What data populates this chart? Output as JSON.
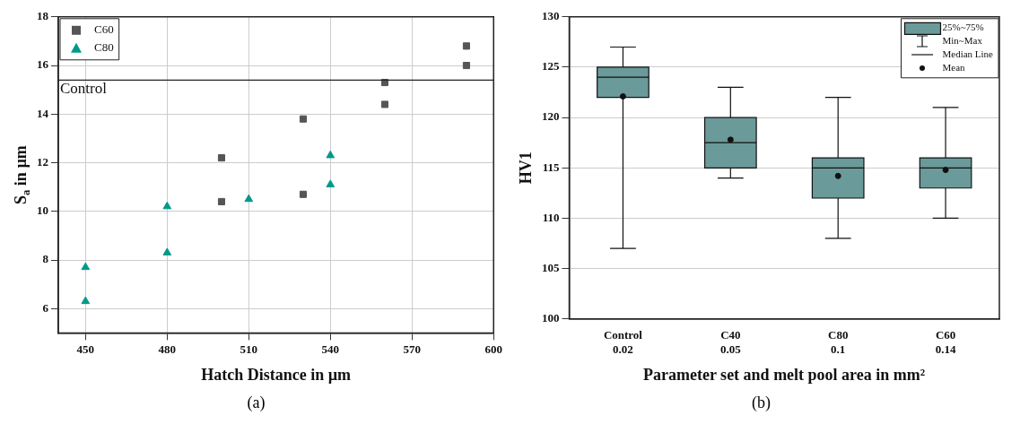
{
  "chart_data": [
    {
      "type": "scatter",
      "xlabel": "Hatch Distance in µm",
      "ylabel": "S$_{a}$ in µm",
      "xlim": [
        440,
        600
      ],
      "xticks": [
        450,
        480,
        510,
        540,
        570,
        600
      ],
      "ylim": [
        5,
        18
      ],
      "yticks": [
        6,
        8,
        10,
        12,
        14,
        16,
        18
      ],
      "grid": true,
      "legend": "top left",
      "series": [
        {
          "name": "C60",
          "color": "#555555",
          "marker": "square",
          "x": [
            500,
            500,
            530,
            530,
            560,
            560,
            590,
            590
          ],
          "values": [
            12.2,
            10.4,
            13.8,
            10.7,
            15.3,
            14.4,
            16.8,
            16.0
          ]
        },
        {
          "name": "C80",
          "color": "#009988",
          "marker": "triangle",
          "x": [
            450,
            450,
            480,
            480,
            510,
            540,
            540
          ],
          "values": [
            7.7,
            6.3,
            10.2,
            8.3,
            10.5,
            12.3,
            11.1
          ]
        }
      ],
      "ref_lines": [
        {
          "axis": "y",
          "value": 15.4,
          "label": "Control",
          "color": "#222222"
        }
      ],
      "annotations": [
        "(a)"
      ]
    },
    {
      "type": "box",
      "xlabel": "Parameter set and melt pool area in mm²",
      "ylabel": "HV1",
      "categories": [
        "Control\n0.02",
        "C40\n0.05",
        "C80\n0.1",
        "C60\n0.14"
      ],
      "ylim": [
        100,
        130
      ],
      "yticks": [
        100,
        105,
        110,
        115,
        120,
        125,
        130
      ],
      "grid": "y",
      "legend": "top right",
      "series": [
        {
          "name": "25%~75%",
          "color": "#6a9a9a",
          "boxes": [
            {
              "low": 107,
              "q1": 122,
              "median": 124,
              "q3": 125,
              "high": 127,
              "mean": 122.1
            },
            {
              "low": 114,
              "q1": 115,
              "median": 117.5,
              "q3": 120,
              "high": 123,
              "mean": 117.8
            },
            {
              "low": 108,
              "q1": 112,
              "median": 115,
              "q3": 116,
              "high": 122,
              "mean": 114.2
            },
            {
              "low": 110,
              "q1": 113,
              "median": 115,
              "q3": 116,
              "high": 121,
              "mean": 114.8
            }
          ]
        }
      ],
      "annotations": [
        "Min~Max",
        "Median Line",
        "Mean",
        "(b)"
      ]
    }
  ]
}
